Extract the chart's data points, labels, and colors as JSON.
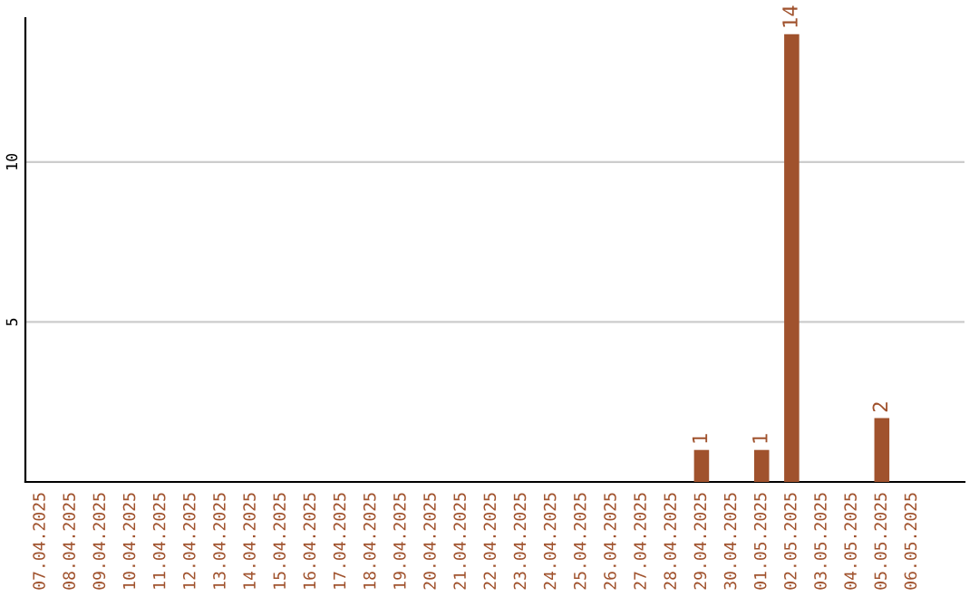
{
  "chart_data": {
    "type": "bar",
    "categories": [
      "07.04.2025",
      "08.04.2025",
      "09.04.2025",
      "10.04.2025",
      "11.04.2025",
      "12.04.2025",
      "13.04.2025",
      "14.04.2025",
      "15.04.2025",
      "16.04.2025",
      "17.04.2025",
      "18.04.2025",
      "19.04.2025",
      "20.04.2025",
      "21.04.2025",
      "22.04.2025",
      "23.04.2025",
      "24.04.2025",
      "25.04.2025",
      "26.04.2025",
      "27.04.2025",
      "28.04.2025",
      "29.04.2025",
      "30.04.2025",
      "01.05.2025",
      "02.05.2025",
      "03.05.2025",
      "04.05.2025",
      "05.05.2025",
      "06.05.2025"
    ],
    "values": [
      0,
      0,
      0,
      0,
      0,
      0,
      0,
      0,
      0,
      0,
      0,
      0,
      0,
      0,
      0,
      0,
      0,
      0,
      0,
      0,
      0,
      0,
      1,
      0,
      1,
      14,
      0,
      0,
      2,
      0
    ],
    "value_labels": [
      null,
      null,
      null,
      null,
      null,
      null,
      null,
      null,
      null,
      null,
      null,
      null,
      null,
      null,
      null,
      null,
      null,
      null,
      null,
      null,
      null,
      null,
      "1",
      null,
      "1",
      "14",
      null,
      null,
      "2",
      null
    ],
    "color": "#a0522d",
    "ylim": [
      0,
      14.5
    ],
    "yticks": [
      5,
      10
    ],
    "grid": "y"
  }
}
